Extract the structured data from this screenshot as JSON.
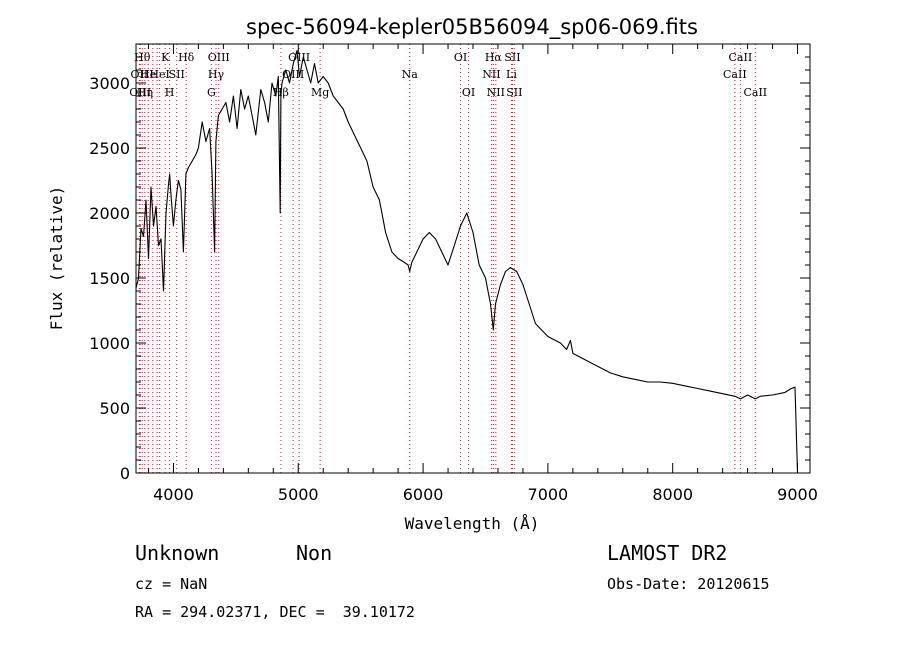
{
  "header": {
    "object_class": "Unknown",
    "subclass": "Non",
    "survey": "LAMOST DR2",
    "cz": "cz = NaN",
    "obs_date": "Obs-Date: 20120615",
    "coords": "RA = 294.02371, DEC =  39.10172"
  },
  "chart_data": {
    "type": "line",
    "title": "spec-56094-kepler05B56094_sp06-069.fits",
    "xlabel": "Wavelength (Å)",
    "ylabel": "Flux (relative)",
    "xlim": [
      3700,
      9100
    ],
    "ylim": [
      0,
      3300
    ],
    "xticks": [
      4000,
      5000,
      6000,
      7000,
      8000,
      9000
    ],
    "yticks": [
      0,
      500,
      1000,
      1500,
      2000,
      2500,
      3000
    ],
    "grid": false,
    "line_color": "#000000",
    "marker_color": "#cc2222",
    "series": [
      {
        "x": [
          3700,
          3720,
          3740,
          3760,
          3780,
          3800,
          3820,
          3840,
          3860,
          3880,
          3900,
          3920,
          3940,
          3960,
          3970,
          3980,
          4000,
          4020,
          4040,
          4060,
          4080,
          4100,
          4120,
          4150,
          4180,
          4200,
          4230,
          4260,
          4290,
          4310,
          4330,
          4340,
          4360,
          4390,
          4420,
          4450,
          4480,
          4510,
          4540,
          4570,
          4600,
          4630,
          4660,
          4700,
          4730,
          4760,
          4790,
          4820,
          4840,
          4855,
          4861,
          4870,
          4900,
          4930,
          4960,
          4990,
          5010,
          5040,
          5070,
          5100,
          5130,
          5160,
          5200,
          5240,
          5280,
          5320,
          5360,
          5400,
          5450,
          5500,
          5550,
          5600,
          5650,
          5700,
          5750,
          5800,
          5850,
          5880,
          5893,
          5910,
          5950,
          6000,
          6050,
          6100,
          6150,
          6200,
          6250,
          6300,
          6350,
          6400,
          6450,
          6500,
          6540,
          6563,
          6580,
          6620,
          6660,
          6700,
          6750,
          6800,
          6850,
          6900,
          6950,
          7000,
          7100,
          7150,
          7180,
          7200,
          7300,
          7400,
          7500,
          7600,
          7700,
          7800,
          7900,
          8000,
          8100,
          8200,
          8300,
          8400,
          8500,
          8542,
          8600,
          8662,
          8700,
          8800,
          8900,
          8950,
          8980,
          9000
        ],
        "y": [
          1420,
          1500,
          1880,
          1820,
          2100,
          1650,
          2200,
          1900,
          2050,
          1750,
          1800,
          1400,
          2000,
          2220,
          2300,
          2150,
          1900,
          2100,
          2250,
          2180,
          1700,
          2300,
          2350,
          2400,
          2450,
          2500,
          2700,
          2550,
          2650,
          2300,
          1700,
          2550,
          2750,
          2800,
          2850,
          2700,
          2900,
          2650,
          2950,
          2800,
          2900,
          2750,
          2600,
          2950,
          2850,
          2700,
          3000,
          2900,
          3050,
          2000,
          2900,
          3000,
          3100,
          3000,
          3150,
          3250,
          3050,
          3200,
          3100,
          3000,
          3150,
          3000,
          3050,
          3000,
          2900,
          2850,
          2800,
          2700,
          2600,
          2500,
          2400,
          2200,
          2100,
          1850,
          1700,
          1650,
          1620,
          1600,
          1550,
          1620,
          1700,
          1800,
          1850,
          1800,
          1700,
          1600,
          1750,
          1900,
          2000,
          1850,
          1600,
          1500,
          1300,
          1100,
          1300,
          1450,
          1550,
          1580,
          1550,
          1450,
          1300,
          1150,
          1100,
          1050,
          1000,
          950,
          1020,
          920,
          870,
          820,
          770,
          740,
          720,
          700,
          700,
          690,
          670,
          650,
          630,
          610,
          590,
          570,
          600,
          570,
          590,
          600,
          620,
          650,
          660,
          0
        ]
      }
    ],
    "line_markers": [
      {
        "w": 3727,
        "label": "OII",
        "tier": 1
      },
      {
        "w": 3734,
        "label": "OIII",
        "tier": 2
      },
      {
        "w": 3750,
        "label": "Hθ",
        "tier": 0
      },
      {
        "w": 3771,
        "label": "Hη",
        "tier": 2
      },
      {
        "w": 3798,
        "label": "He",
        "tier": 1
      },
      {
        "w": 3835,
        "label": "",
        "tier": 0
      },
      {
        "w": 3869,
        "label": "",
        "tier": 0
      },
      {
        "w": 3889,
        "label": "HeI",
        "tier": 1
      },
      {
        "w": 3934,
        "label": "K",
        "tier": 0
      },
      {
        "w": 3969,
        "label": "H",
        "tier": 2
      },
      {
        "w": 4026,
        "label": "SII",
        "tier": 1
      },
      {
        "w": 4102,
        "label": "Hδ",
        "tier": 0
      },
      {
        "w": 4304,
        "label": "G",
        "tier": 2
      },
      {
        "w": 4341,
        "label": "Hγ",
        "tier": 1
      },
      {
        "w": 4363,
        "label": "OIII",
        "tier": 0
      },
      {
        "w": 4861,
        "label": "Hβ",
        "tier": 2
      },
      {
        "w": 4959,
        "label": "OIII",
        "tier": 1
      },
      {
        "w": 5007,
        "label": "OIII",
        "tier": 0
      },
      {
        "w": 5175,
        "label": "Mg",
        "tier": 2
      },
      {
        "w": 5893,
        "label": "Na",
        "tier": 1
      },
      {
        "w": 6300,
        "label": "OI",
        "tier": 0
      },
      {
        "w": 6364,
        "label": "OI",
        "tier": 2
      },
      {
        "w": 6548,
        "label": "NII",
        "tier": 1
      },
      {
        "w": 6563,
        "label": "Hα",
        "tier": 0
      },
      {
        "w": 6583,
        "label": "NII",
        "tier": 2
      },
      {
        "w": 6708,
        "label": "Li",
        "tier": 1
      },
      {
        "w": 6716,
        "label": "SII",
        "tier": 0
      },
      {
        "w": 6731,
        "label": "SII",
        "tier": 2
      },
      {
        "w": 8498,
        "label": "CaII",
        "tier": 1
      },
      {
        "w": 8542,
        "label": "CaII",
        "tier": 0
      },
      {
        "w": 8662,
        "label": "CaII",
        "tier": 2
      }
    ]
  }
}
